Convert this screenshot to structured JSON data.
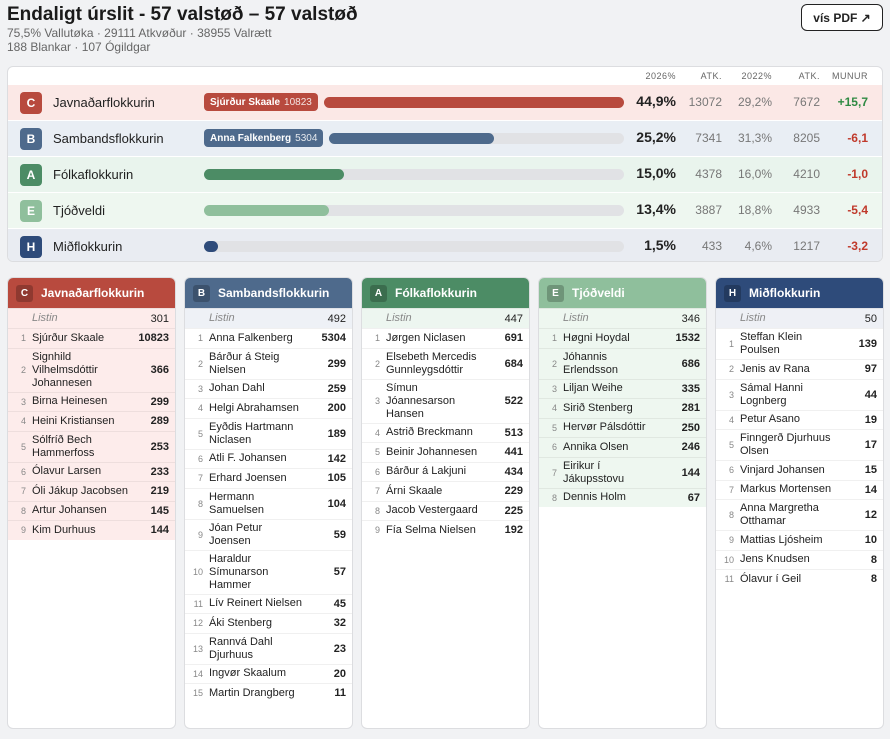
{
  "header": {
    "title": "Endaligt úrslit - 57 valstøð – 57 valstøð",
    "stats_line1": "75,5% Vallutøka · 29111 Atkvøður · 38955 Valrætt",
    "stats_line2": "188 Blankar · 107 Ógildgar",
    "pdf_label": "vís PDF ↗"
  },
  "results": {
    "headers": {
      "y2026": "2026%",
      "atk1": "ATK.",
      "y2022": "2022%",
      "atk2": "ATK.",
      "munur": "MUNUR"
    },
    "rows": [
      {
        "letter": "C",
        "name": "Javnaðarflokkurin",
        "color": "#b84a3e",
        "bg": "#fbe8e6",
        "bar_fraction": 1.0,
        "pill_name": "Sjúrður Skaale",
        "pill_value": "10823",
        "pct": "44,9%",
        "atk": "13072",
        "pct22": "29,2%",
        "atk22": "7672",
        "diff": "+15,7",
        "diff_sign": "pos"
      },
      {
        "letter": "B",
        "name": "Sambandsflokkurin",
        "color": "#4e6a8c",
        "bg": "#e9eef4",
        "bar_fraction": 0.561,
        "pill_name": "Anna Falkenberg",
        "pill_value": "5304",
        "pct": "25,2%",
        "atk": "7341",
        "pct22": "31,3%",
        "atk22": "8205",
        "diff": "-6,1",
        "diff_sign": "neg"
      },
      {
        "letter": "A",
        "name": "Fólkaflokkurin",
        "color": "#4c8c65",
        "bg": "#e9f4ed",
        "bar_fraction": 0.334,
        "pill_name": "",
        "pill_value": "",
        "pct": "15,0%",
        "atk": "4378",
        "pct22": "16,0%",
        "atk22": "4210",
        "diff": "-1,0",
        "diff_sign": "neg"
      },
      {
        "letter": "E",
        "name": "Tjóðveldi",
        "color": "#8fbf9c",
        "bg": "#eef7f0",
        "bar_fraction": 0.298,
        "pill_name": "",
        "pill_value": "",
        "pct": "13,4%",
        "atk": "3887",
        "pct22": "18,8%",
        "atk22": "4933",
        "diff": "-5,4",
        "diff_sign": "neg"
      },
      {
        "letter": "H",
        "name": "Miðflokkurin",
        "color": "#2e4b7a",
        "bg": "#e9ecf2",
        "bar_fraction": 0.033,
        "pill_name": "",
        "pill_value": "",
        "pct": "1,5%",
        "atk": "433",
        "pct22": "4,6%",
        "atk22": "1217",
        "diff": "-3,2",
        "diff_sign": "neg"
      }
    ]
  },
  "columns": [
    {
      "letter": "C",
      "name": "Javnaðarflokkurin",
      "color": "#b84a3e",
      "tint": "#fdeceb",
      "listin_label": "Listin",
      "listin_votes": "301",
      "candidates": [
        {
          "n": "1",
          "name": "Sjúrður Skaale",
          "votes": "10823"
        },
        {
          "n": "2",
          "name": "Signhild Vilhelmsdóttir Johannesen",
          "votes": "366"
        },
        {
          "n": "3",
          "name": "Birna Heinesen",
          "votes": "299"
        },
        {
          "n": "4",
          "name": "Heini Kristiansen",
          "votes": "289"
        },
        {
          "n": "5",
          "name": "Sólfríð Bech Hammerfoss",
          "votes": "253"
        },
        {
          "n": "6",
          "name": "Ólavur Larsen",
          "votes": "233"
        },
        {
          "n": "7",
          "name": "Óli Jákup Jacobsen",
          "votes": "219"
        },
        {
          "n": "8",
          "name": "Artur Johansen",
          "votes": "145"
        },
        {
          "n": "9",
          "name": "Kim Durhuus",
          "votes": "144"
        }
      ]
    },
    {
      "letter": "B",
      "name": "Sambandsflokkurin",
      "color": "#4e6a8c",
      "tint": "#eef1f6",
      "listin_label": "Listin",
      "listin_votes": "492",
      "candidates": [
        {
          "n": "1",
          "name": "Anna Falkenberg",
          "votes": "5304"
        },
        {
          "n": "2",
          "name": "Bárður á Steig Nielsen",
          "votes": "299"
        },
        {
          "n": "3",
          "name": "Johan Dahl",
          "votes": "259"
        },
        {
          "n": "4",
          "name": "Helgi Abrahamsen",
          "votes": "200"
        },
        {
          "n": "5",
          "name": "Eyðdis Hartmann Niclasen",
          "votes": "189"
        },
        {
          "n": "6",
          "name": "Atli F. Johansen",
          "votes": "142"
        },
        {
          "n": "7",
          "name": "Erhard Joensen",
          "votes": "105"
        },
        {
          "n": "8",
          "name": "Hermann Samuelsen",
          "votes": "104"
        },
        {
          "n": "9",
          "name": "Jóan Petur Joensen",
          "votes": "59"
        },
        {
          "n": "10",
          "name": "Haraldur Símunarson Hammer",
          "votes": "57"
        },
        {
          "n": "11",
          "name": "Lív Reinert Nielsen",
          "votes": "45"
        },
        {
          "n": "12",
          "name": "Áki Stenberg",
          "votes": "32"
        },
        {
          "n": "13",
          "name": "Rannvá Dahl Djurhuus",
          "votes": "23"
        },
        {
          "n": "14",
          "name": "Ingvør Skaalum",
          "votes": "20"
        },
        {
          "n": "15",
          "name": "Martin Drangberg",
          "votes": "11"
        }
      ]
    },
    {
      "letter": "A",
      "name": "Fólkaflokkurin",
      "color": "#4c8c65",
      "tint": "#edf6f0",
      "listin_label": "Listin",
      "listin_votes": "447",
      "candidates": [
        {
          "n": "1",
          "name": "Jørgen Niclasen",
          "votes": "691"
        },
        {
          "n": "2",
          "name": "Elsebeth Mercedis Gunnleygsdóttir",
          "votes": "684"
        },
        {
          "n": "3",
          "name": "Símun Jóannesarson Hansen",
          "votes": "522"
        },
        {
          "n": "4",
          "name": "Astrið Breckmann",
          "votes": "513"
        },
        {
          "n": "5",
          "name": "Beinir Johannesen",
          "votes": "441"
        },
        {
          "n": "6",
          "name": "Bárður á Lakjuni",
          "votes": "434"
        },
        {
          "n": "7",
          "name": "Árni Skaale",
          "votes": "229"
        },
        {
          "n": "8",
          "name": "Jacob Vestergaard",
          "votes": "225"
        },
        {
          "n": "9",
          "name": "Fía Selma Nielsen",
          "votes": "192"
        }
      ]
    },
    {
      "letter": "E",
      "name": "Tjóðveldi",
      "color": "#8fbf9c",
      "tint": "#eef7f0",
      "listin_label": "Listin",
      "listin_votes": "346",
      "candidates": [
        {
          "n": "1",
          "name": "Høgni Hoydal",
          "votes": "1532"
        },
        {
          "n": "2",
          "name": "Jóhannis Erlendsson",
          "votes": "686"
        },
        {
          "n": "3",
          "name": "Liljan Weihe",
          "votes": "335"
        },
        {
          "n": "4",
          "name": "Sirið Stenberg",
          "votes": "281"
        },
        {
          "n": "5",
          "name": "Hervør Pálsdóttir",
          "votes": "250"
        },
        {
          "n": "6",
          "name": "Annika Olsen",
          "votes": "246"
        },
        {
          "n": "7",
          "name": "Eirikur í Jákupsstovu",
          "votes": "144"
        },
        {
          "n": "8",
          "name": "Dennis Holm",
          "votes": "67"
        }
      ]
    },
    {
      "letter": "H",
      "name": "Miðflokkurin",
      "color": "#2e4b7a",
      "tint": "#eef0f5",
      "listin_label": "Listin",
      "listin_votes": "50",
      "candidates": [
        {
          "n": "1",
          "name": "Steffan Klein Poulsen",
          "votes": "139"
        },
        {
          "n": "2",
          "name": "Jenis av Rana",
          "votes": "97"
        },
        {
          "n": "3",
          "name": "Sámal Hanni Lognberg",
          "votes": "44"
        },
        {
          "n": "4",
          "name": "Petur Asano",
          "votes": "19"
        },
        {
          "n": "5",
          "name": "Finngerð Djurhuus Olsen",
          "votes": "17"
        },
        {
          "n": "6",
          "name": "Vinjard Johansen",
          "votes": "15"
        },
        {
          "n": "7",
          "name": "Markus Mortensen",
          "votes": "14"
        },
        {
          "n": "8",
          "name": "Anna Margretha Otthamar",
          "votes": "12"
        },
        {
          "n": "9",
          "name": "Mattias Ljósheim",
          "votes": "10"
        },
        {
          "n": "10",
          "name": "Jens Knudsen",
          "votes": "8"
        },
        {
          "n": "11",
          "name": "Ólavur í Geil",
          "votes": "8"
        }
      ]
    }
  ]
}
